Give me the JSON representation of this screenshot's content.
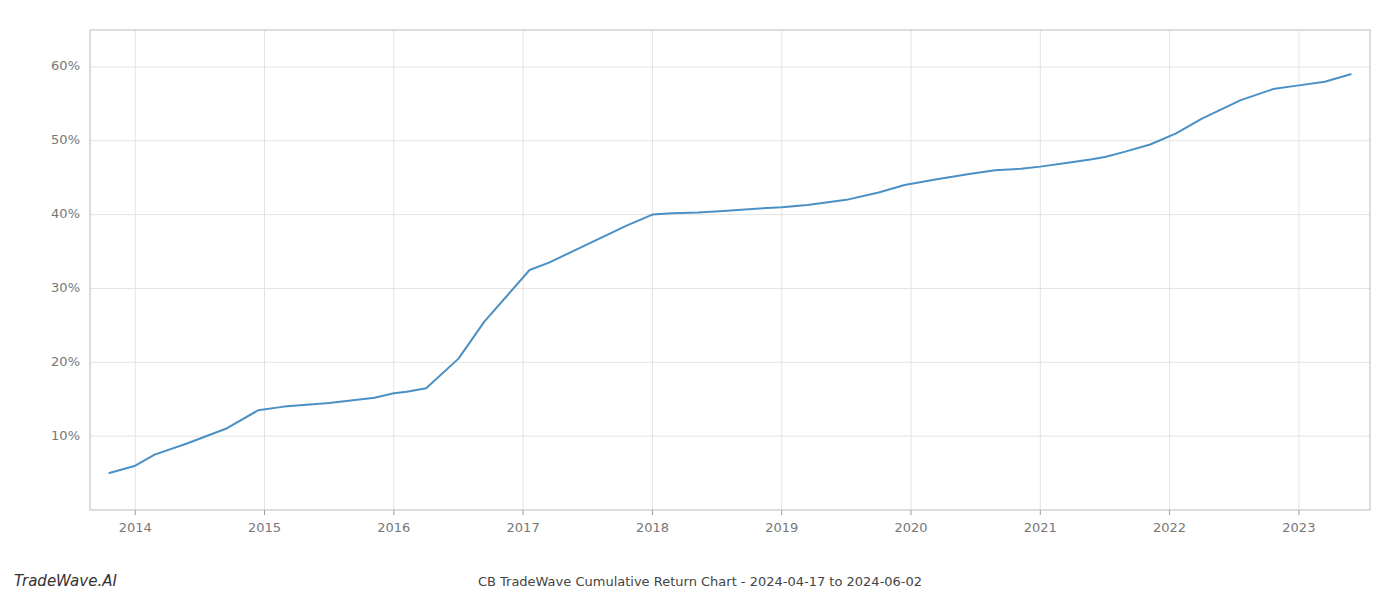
{
  "chart_data": {
    "type": "line",
    "title": "CB TradeWave Cumulative Return Chart - 2024-04-17 to 2024-06-02",
    "annotations": [
      "TradeWave.AI"
    ],
    "color": "#4a90c4",
    "x": [
      2013.8,
      2014.0,
      2014.15,
      2014.4,
      2014.7,
      2014.95,
      2015.15,
      2015.35,
      2015.5,
      2015.65,
      2015.85,
      2016.0,
      2016.1,
      2016.25,
      2016.5,
      2016.7,
      2016.9,
      2017.05,
      2017.2,
      2017.5,
      2017.8,
      2018.0,
      2018.15,
      2018.35,
      2018.55,
      2018.8,
      2019.0,
      2019.2,
      2019.5,
      2019.75,
      2019.95,
      2020.2,
      2020.45,
      2020.65,
      2020.85,
      2021.0,
      2021.2,
      2021.4,
      2021.5,
      2021.65,
      2021.85,
      2022.05,
      2022.25,
      2022.55,
      2022.8,
      2023.0,
      2023.2,
      2023.4
    ],
    "values": [
      5.0,
      6.0,
      7.5,
      9.0,
      11.0,
      13.5,
      14.0,
      14.3,
      14.5,
      14.8,
      15.2,
      15.8,
      16.0,
      16.5,
      20.5,
      25.5,
      29.5,
      32.5,
      33.5,
      36.0,
      38.5,
      40.0,
      40.2,
      40.3,
      40.5,
      40.8,
      41.0,
      41.3,
      42.0,
      43.0,
      44.0,
      44.8,
      45.5,
      46.0,
      46.2,
      46.5,
      47.0,
      47.5,
      47.8,
      48.5,
      49.5,
      51.0,
      53.0,
      55.5,
      57.0,
      57.5,
      58.0,
      59.0
    ],
    "xlim": [
      2013.65,
      2023.55
    ],
    "ylim": [
      0,
      65
    ],
    "xticks": [
      2014,
      2015,
      2016,
      2017,
      2018,
      2019,
      2020,
      2021,
      2022,
      2023
    ],
    "yticks": [
      {
        "value": 10,
        "label": "10%"
      },
      {
        "value": 20,
        "label": "20%"
      },
      {
        "value": 30,
        "label": "30%"
      },
      {
        "value": 40,
        "label": "40%"
      },
      {
        "value": 50,
        "label": "50%"
      },
      {
        "value": 60,
        "label": "60%"
      }
    ],
    "grid": true
  }
}
